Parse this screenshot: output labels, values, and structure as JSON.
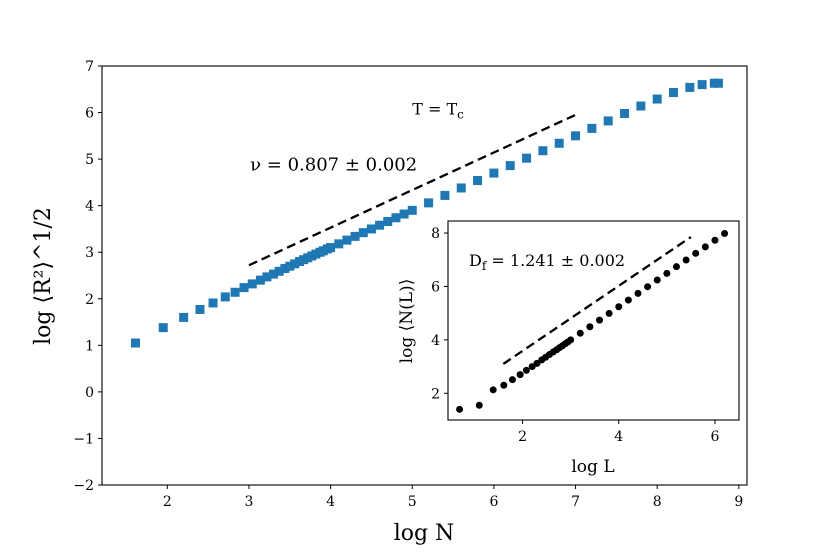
{
  "chart_data": [
    {
      "type": "scatter",
      "name": "main",
      "title": "",
      "xlabel": "log N",
      "ylabel": "log ⟨R²⟩^1/2",
      "xlim": [
        1.2,
        9.1
      ],
      "ylim": [
        -2,
        7
      ],
      "xticks": [
        2,
        3,
        4,
        5,
        6,
        7,
        8,
        9
      ],
      "yticks": [
        -2,
        -1,
        0,
        1,
        2,
        3,
        4,
        5,
        6,
        7
      ],
      "xtick_labels": [
        "2",
        "3",
        "4",
        "5",
        "6",
        "7",
        "8",
        "9"
      ],
      "ytick_labels": [
        "−2",
        "−1",
        "0",
        "1",
        "2",
        "3",
        "4",
        "5",
        "6",
        "7"
      ],
      "marker": "square",
      "color": "#1f77b4",
      "series": [
        {
          "name": "data",
          "x": [
            1.61,
            1.95,
            2.2,
            2.4,
            2.56,
            2.71,
            2.83,
            2.94,
            3.04,
            3.14,
            3.22,
            3.3,
            3.37,
            3.44,
            3.5,
            3.56,
            3.62,
            3.67,
            3.72,
            3.77,
            3.82,
            3.87,
            3.91,
            3.96,
            4.0,
            4.1,
            4.2,
            4.3,
            4.4,
            4.5,
            4.6,
            4.7,
            4.8,
            4.9,
            5.0,
            5.2,
            5.4,
            5.6,
            5.8,
            6.0,
            6.2,
            6.4,
            6.6,
            6.8,
            7.0,
            7.2,
            7.4,
            7.6,
            7.8,
            8.0,
            8.2,
            8.4,
            8.55,
            8.7,
            8.75
          ],
          "y": [
            1.05,
            1.38,
            1.6,
            1.77,
            1.91,
            2.04,
            2.14,
            2.24,
            2.32,
            2.4,
            2.47,
            2.53,
            2.59,
            2.65,
            2.7,
            2.75,
            2.8,
            2.84,
            2.88,
            2.92,
            2.96,
            3.0,
            3.03,
            3.07,
            3.1,
            3.18,
            3.26,
            3.34,
            3.42,
            3.5,
            3.58,
            3.66,
            3.74,
            3.82,
            3.9,
            4.06,
            4.22,
            4.38,
            4.54,
            4.7,
            4.86,
            5.02,
            5.18,
            5.34,
            5.5,
            5.66,
            5.82,
            5.98,
            6.14,
            6.29,
            6.43,
            6.54,
            6.6,
            6.63,
            6.63
          ]
        },
        {
          "name": "fit",
          "style": "dashed",
          "x": [
            3.0,
            7.0
          ],
          "y": [
            2.72,
            5.95
          ]
        }
      ],
      "annotations": [
        {
          "id": "temp",
          "text": "T = T",
          "sub": "c",
          "x": 5.0,
          "y": 6.5
        },
        {
          "id": "nu",
          "text": "ν = 0.807 ± 0.002",
          "x": 3.1,
          "y": 4.95
        }
      ]
    },
    {
      "type": "scatter",
      "name": "inset",
      "title": "",
      "xlabel": "log L",
      "ylabel": "log ⟨N(L)⟩",
      "xlim": [
        0.45,
        6.5
      ],
      "ylim": [
        1.0,
        8.45
      ],
      "xticks": [
        2,
        4,
        6
      ],
      "yticks": [
        2,
        4,
        6,
        8
      ],
      "xtick_labels": [
        "2",
        "4",
        "6"
      ],
      "ytick_labels": [
        "2",
        "4",
        "6",
        "8"
      ],
      "marker": "circle",
      "color": "#000000",
      "series": [
        {
          "name": "data",
          "x": [
            0.69,
            1.1,
            1.39,
            1.61,
            1.79,
            1.95,
            2.08,
            2.2,
            2.3,
            2.4,
            2.48,
            2.56,
            2.64,
            2.71,
            2.77,
            2.83,
            2.89,
            2.94,
            3.0,
            3.2,
            3.4,
            3.6,
            3.8,
            4.0,
            4.2,
            4.4,
            4.6,
            4.8,
            5.0,
            5.2,
            5.4,
            5.6,
            5.8,
            6.0,
            6.2
          ],
          "y": [
            1.4,
            1.55,
            2.13,
            2.3,
            2.51,
            2.7,
            2.86,
            3.0,
            3.12,
            3.25,
            3.35,
            3.45,
            3.55,
            3.63,
            3.71,
            3.78,
            3.86,
            3.92,
            4.0,
            4.25,
            4.49,
            4.74,
            4.99,
            5.24,
            5.49,
            5.74,
            5.99,
            6.24,
            6.49,
            6.74,
            6.99,
            7.24,
            7.48,
            7.73,
            7.98
          ]
        },
        {
          "name": "fit",
          "style": "dashed",
          "x": [
            1.6,
            5.5
          ],
          "y": [
            3.1,
            7.85
          ]
        }
      ],
      "annotations": [
        {
          "id": "df",
          "text": "D",
          "sub": "f",
          "rest": " = 1.241 ± 0.002",
          "x": 0.95,
          "y": 7.1
        }
      ]
    }
  ]
}
